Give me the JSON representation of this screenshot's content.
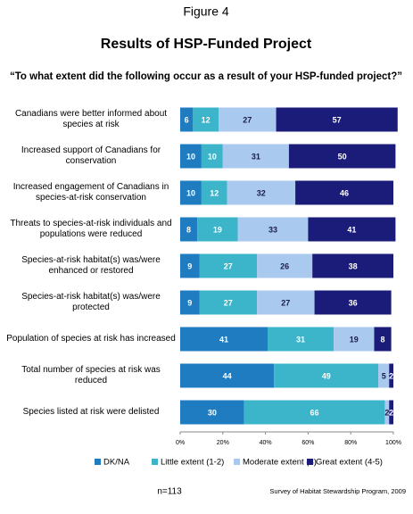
{
  "chart_data": {
    "type": "stacked-barh",
    "figure_label": "Figure 4",
    "title": "Results of HSP-Funded Project",
    "subtitle": "“To what extent did the following occur as a result of your HSP-funded project?”",
    "note": "n=113",
    "source": "Survey of Habitat Stewardship Program, 2009",
    "categories": [
      "Canadians were better informed about species at risk",
      "Increased support of Canadians for conservation",
      "Increased engagement of Canadians in species-at-risk conservation",
      "Threats to species-at-risk individuals and populations were reduced",
      "Species-at-risk habitat(s) was/were enhanced or restored",
      "Species-at-risk habitat(s) was/were protected",
      "Population of species at risk has increased",
      "Total number of species at risk was reduced",
      "Species listed at risk were delisted"
    ],
    "series": [
      {
        "name": "DK/NA",
        "color": "#1f7cc0",
        "values": [
          6,
          10,
          10,
          8,
          9,
          9,
          41,
          44,
          30
        ]
      },
      {
        "name": "Little extent (1-2)",
        "color": "#3cb4c9",
        "values": [
          12,
          10,
          12,
          19,
          27,
          27,
          31,
          49,
          66
        ]
      },
      {
        "name": "Moderate extent (3)",
        "color": "#a9c9ee",
        "values": [
          27,
          31,
          32,
          33,
          26,
          27,
          19,
          5,
          2
        ]
      },
      {
        "name": "Great extent (4-5)",
        "color": "#1b1c7a",
        "values": [
          57,
          50,
          46,
          41,
          38,
          36,
          8,
          2,
          2
        ]
      }
    ],
    "xlim": [
      0,
      100
    ],
    "xticks": [
      {
        "value": 0,
        "label": "0%"
      },
      {
        "value": 20,
        "label": "20%"
      },
      {
        "value": 40,
        "label": "40%"
      },
      {
        "value": 60,
        "label": "60%"
      },
      {
        "value": 80,
        "label": "80%"
      },
      {
        "value": 100,
        "label": "100%"
      }
    ]
  }
}
